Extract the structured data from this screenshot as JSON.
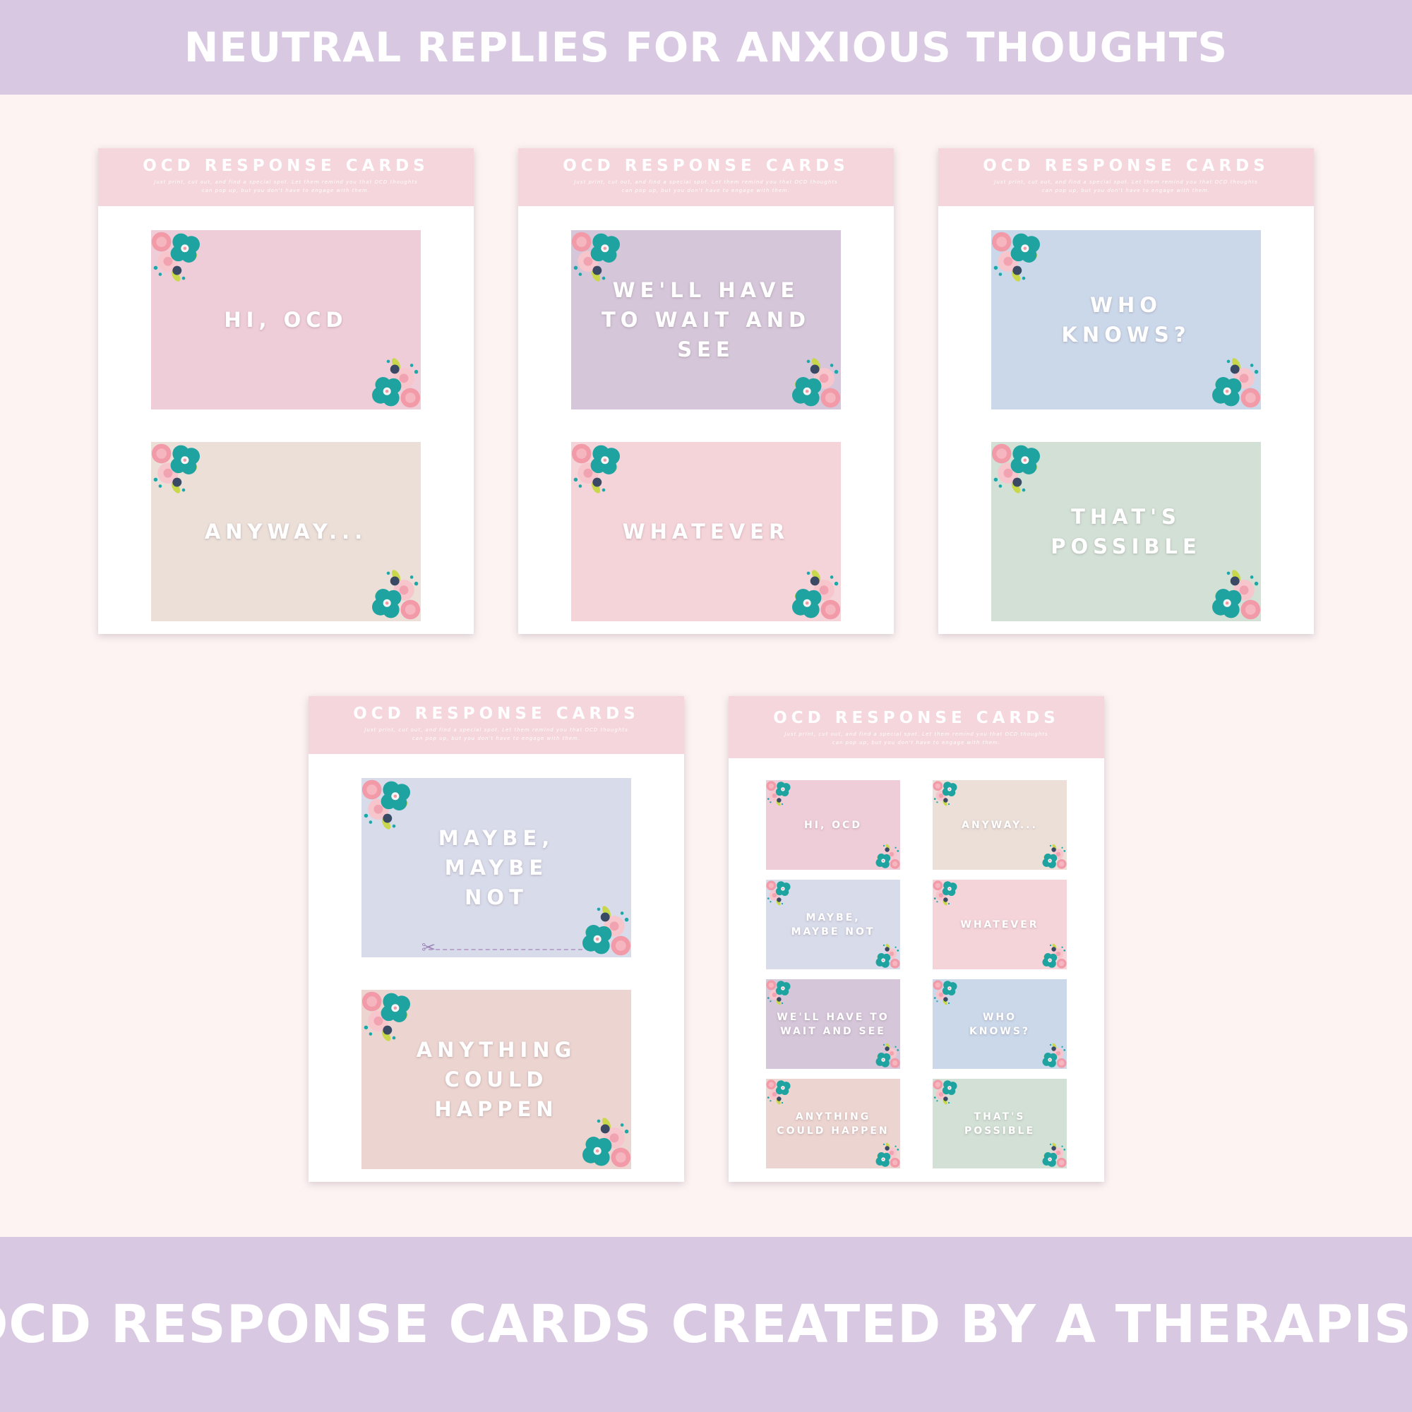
{
  "banner": {
    "top": "NEUTRAL REPLIES FOR ANXIOUS THOUGHTS",
    "bottom": "OCD RESPONSE CARDS CREATED BY A THERAPIST"
  },
  "sheet_header": {
    "title": "OCD RESPONSE CARDS",
    "subtitle": "Just print, cut out, and find a special spot. Let them remind you that OCD thoughts can pop up, but you don't have to engage with them."
  },
  "cards": {
    "hi_ocd": "HI, OCD",
    "anyway": "ANYWAY...",
    "wait_and_see": "WE'LL HAVE TO WAIT AND SEE",
    "whatever": "WHATEVER",
    "who_knows": "WHO KNOWS?",
    "thats_possible": "THAT'S POSSIBLE",
    "maybe": "MAYBE, MAYBE NOT",
    "anything": "ANYTHING COULD HAPPEN"
  },
  "colors": {
    "banner": "#d8c8e2",
    "background": "#fdf3f3",
    "sheet_header": "#f5d6dd",
    "card_pink": "#eecdd8",
    "card_beige": "#ebdfd8",
    "card_lavender": "#d5c6d9",
    "card_blush": "#f4d4d9",
    "card_blue": "#cad8ea",
    "card_sage": "#d2e0d5",
    "card_periwinkle": "#d8dbea",
    "card_rose_beige": "#ecd4d0"
  },
  "icons": {
    "flower": "flower-cluster-icon",
    "scissors": "scissors-icon"
  }
}
